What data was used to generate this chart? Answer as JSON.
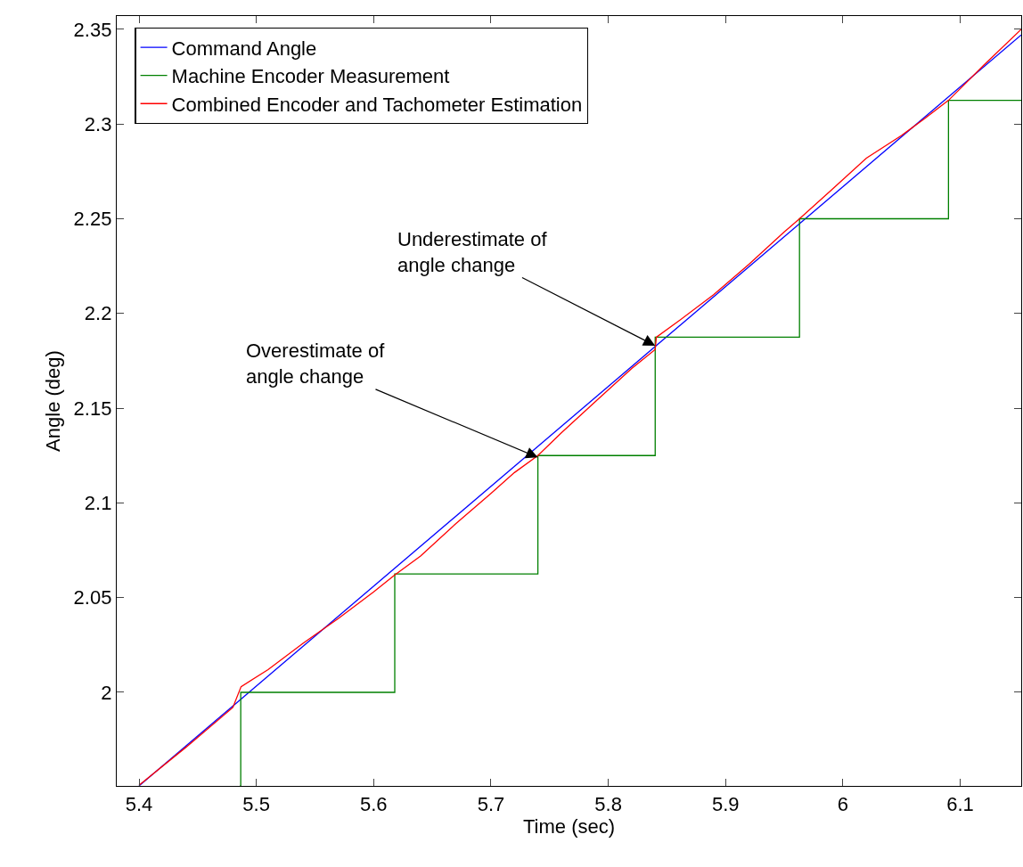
{
  "chart_data": {
    "type": "line",
    "xlabel": "Time (sec)",
    "ylabel": "Angle (deg)",
    "xlim": [
      5.381,
      6.152
    ],
    "ylim": [
      1.9506,
      2.357
    ],
    "xticks": [
      5.4,
      5.5,
      5.6,
      5.7,
      5.8,
      5.9,
      6,
      6.1
    ],
    "yticks": [
      2,
      2.05,
      2.1,
      2.15,
      2.2,
      2.25,
      2.3,
      2.35
    ],
    "grid": false,
    "legend": "top left",
    "line_style": "solid",
    "marker": "none",
    "series": [
      {
        "name": "Command Angle",
        "color": "#0000ff",
        "x": [
          5.4,
          6.152
        ],
        "values": [
          1.9506,
          2.347
        ]
      },
      {
        "name": "Machine Encoder Measurement",
        "color": "#008000",
        "type": "step",
        "x": [
          5.486,
          5.4867,
          5.618,
          5.74,
          5.84,
          5.963,
          6.09,
          6.152
        ],
        "values": [
          1.9506,
          2.0,
          2.0625,
          2.125,
          2.1875,
          2.25,
          2.3125,
          2.3125
        ]
      },
      {
        "name": "Combined Encoder and Tachometer Estimation",
        "color": "#ff0000",
        "x": [
          5.4,
          5.44,
          5.48,
          5.487,
          5.51,
          5.54,
          5.57,
          5.6,
          5.618,
          5.64,
          5.67,
          5.7,
          5.72,
          5.74,
          5.76,
          5.79,
          5.82,
          5.84,
          5.841,
          5.86,
          5.89,
          5.92,
          5.95,
          5.963,
          5.99,
          6.02,
          6.05,
          6.07,
          6.09,
          6.12,
          6.152
        ],
        "values": [
          1.951,
          1.971,
          1.992,
          2.003,
          2.012,
          2.026,
          2.039,
          2.053,
          2.062,
          2.072,
          2.089,
          2.105,
          2.116,
          2.125,
          2.137,
          2.154,
          2.171,
          2.181,
          2.1875,
          2.196,
          2.21,
          2.226,
          2.243,
          2.25,
          2.265,
          2.282,
          2.294,
          2.303,
          2.3125,
          2.331,
          2.35
        ]
      }
    ],
    "annotations": [
      {
        "text": "Underestimate of\nangle change",
        "x": 5.84,
        "y": 2.183
      },
      {
        "text": "Overestimate of\nangle change",
        "x": 5.74,
        "y": 2.124
      }
    ]
  }
}
